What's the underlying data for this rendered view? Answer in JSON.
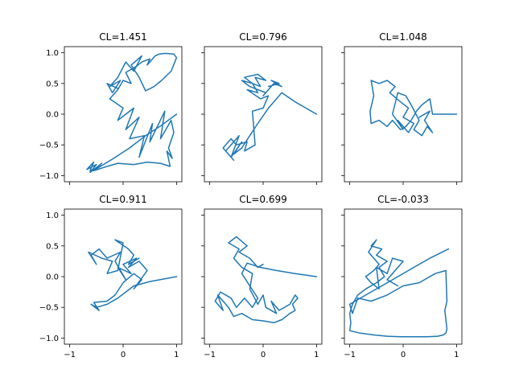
{
  "chart_data": {
    "type": "line",
    "shared_x": true,
    "shared_y": true,
    "xlim": [
      -1.1,
      1.1
    ],
    "ylim": [
      -1.1,
      1.1
    ],
    "xticks": [
      -1,
      0,
      1
    ],
    "yticks": [
      -1.0,
      -0.5,
      0.0,
      0.5,
      1.0
    ],
    "xtick_labels": [
      "−1",
      "0",
      "1"
    ],
    "ytick_labels": [
      "−1.0",
      "−0.5",
      "0.0",
      "0.5",
      "1.0"
    ],
    "color": "#1f77b4",
    "panels": [
      {
        "title": "CL=1.451",
        "x": [
          1.0,
          0.72,
          0.42,
          0.12,
          -0.18,
          -0.48,
          -0.62,
          -0.55,
          -0.68,
          -0.5,
          -0.62,
          -0.4,
          -0.55,
          -0.3,
          -0.1,
          0.2,
          0.45,
          0.7,
          0.88,
          0.82,
          0.92,
          0.85,
          0.95,
          0.9,
          0.7,
          0.78,
          0.5,
          0.55,
          0.3,
          0.4,
          0.12,
          0.3,
          0.05,
          0.2,
          -0.1,
          0.0,
          -0.25,
          -0.1,
          0.0,
          0.15,
          0.05,
          0.25,
          0.35,
          0.5,
          0.45,
          0.6,
          0.68,
          0.78,
          0.95,
          1.0,
          0.9,
          0.72,
          0.58,
          0.42,
          0.3,
          0.15,
          0.35,
          0.2,
          0.05,
          -0.1,
          -0.25,
          -0.05,
          -0.2,
          -0.3,
          -0.1
        ],
        "y": [
          0.0,
          -0.18,
          -0.35,
          -0.55,
          -0.72,
          -0.88,
          -0.92,
          -0.78,
          -0.9,
          -0.82,
          -0.95,
          -0.8,
          -0.92,
          -0.85,
          -0.8,
          -0.82,
          -0.78,
          -0.8,
          -0.85,
          -0.6,
          -0.72,
          -0.55,
          -0.3,
          -0.1,
          -0.4,
          0.05,
          -0.45,
          -0.15,
          -0.7,
          -0.35,
          -0.4,
          -0.05,
          -0.25,
          0.1,
          -0.1,
          0.1,
          0.25,
          0.4,
          0.55,
          0.5,
          0.68,
          0.78,
          0.85,
          0.9,
          0.8,
          0.95,
          0.98,
          0.99,
          0.98,
          0.92,
          0.7,
          0.55,
          0.45,
          0.38,
          0.6,
          0.8,
          0.95,
          0.7,
          0.85,
          0.6,
          0.45,
          0.55,
          0.35,
          0.5,
          0.42
        ]
      },
      {
        "title": "CL=0.796",
        "x": [
          1.0,
          0.6,
          0.35,
          0.1,
          -0.1,
          -0.25,
          -0.4,
          -0.55,
          -0.4,
          -0.6,
          -0.45,
          -0.7,
          -0.55,
          -0.75,
          -0.6,
          -0.5,
          -0.3,
          -0.35,
          -0.15,
          -0.2,
          0.0,
          0.1,
          -0.05,
          -0.3,
          -0.1,
          -0.2,
          -0.05,
          -0.15,
          0.05,
          -0.1,
          -0.35,
          -0.2,
          -0.4,
          -0.25,
          -0.1,
          0.05,
          0.0,
          0.2,
          0.35,
          0.15,
          0.3,
          0.1
        ],
        "y": [
          0.0,
          0.2,
          0.35,
          0.1,
          -0.15,
          -0.35,
          -0.55,
          -0.65,
          -0.45,
          -0.7,
          -0.35,
          -0.6,
          -0.75,
          -0.55,
          -0.4,
          -0.5,
          -0.45,
          -0.6,
          -0.5,
          0.05,
          0.1,
          0.3,
          0.25,
          0.4,
          0.35,
          0.5,
          0.45,
          0.6,
          0.55,
          0.65,
          0.6,
          0.5,
          0.55,
          0.45,
          0.4,
          0.35,
          0.3,
          0.5,
          0.45,
          0.55,
          0.5,
          0.45
        ]
      },
      {
        "title": "CL=1.048",
        "x": [
          1.0,
          0.55,
          0.5,
          0.35,
          0.25,
          0.15,
          0.05,
          -0.05,
          -0.2,
          -0.3,
          -0.45,
          -0.6,
          -0.62,
          -0.55,
          -0.6,
          -0.45,
          -0.3,
          -0.15,
          -0.25,
          -0.05,
          0.1,
          0.0,
          0.2,
          0.1,
          -0.1,
          0.0,
          -0.2,
          -0.1,
          0.05,
          0.15,
          0.3,
          0.2,
          0.35,
          0.45,
          0.55,
          0.4,
          0.5,
          0.3
        ],
        "y": [
          0.0,
          0.0,
          0.25,
          0.15,
          0.05,
          -0.1,
          -0.2,
          -0.25,
          -0.1,
          -0.2,
          -0.1,
          -0.15,
          0.05,
          0.3,
          0.55,
          0.5,
          0.55,
          0.45,
          0.35,
          0.2,
          0.1,
          -0.05,
          -0.15,
          -0.3,
          -0.1,
          -0.25,
          0.0,
          0.35,
          0.3,
          0.15,
          -0.1,
          -0.25,
          -0.35,
          -0.2,
          -0.3,
          -0.1,
          0.05,
          -0.05
        ]
      },
      {
        "title": "CL=0.911",
        "x": [
          1.0,
          0.5,
          0.2,
          0.05,
          -0.1,
          -0.3,
          -0.5,
          -0.6,
          -0.45,
          -0.55,
          -0.3,
          -0.15,
          0.0,
          0.2,
          0.35,
          0.2,
          0.45,
          0.3,
          0.1,
          0.25,
          0.0,
          0.15,
          -0.1,
          0.05,
          -0.15,
          -0.05,
          -0.3,
          -0.45,
          -0.6,
          -0.5,
          -0.65,
          -0.4,
          -0.2,
          -0.3,
          -0.1,
          0.0,
          -0.15,
          0.1,
          0.2,
          0.1,
          0.3
        ],
        "y": [
          0.0,
          -0.08,
          -0.15,
          -0.25,
          -0.35,
          -0.45,
          -0.5,
          -0.45,
          -0.55,
          -0.42,
          -0.4,
          -0.3,
          -0.1,
          0.05,
          -0.05,
          -0.2,
          0.1,
          0.25,
          0.15,
          0.3,
          0.2,
          0.05,
          0.15,
          -0.05,
          0.25,
          0.4,
          0.3,
          0.45,
          0.35,
          0.2,
          0.4,
          0.3,
          0.25,
          0.05,
          0.1,
          0.55,
          0.6,
          0.45,
          0.35,
          0.2,
          0.3
        ]
      },
      {
        "title": "CL=0.699",
        "x": [
          1.0,
          0.6,
          0.25,
          -0.05,
          -0.3,
          -0.4,
          -0.25,
          -0.1,
          -0.2,
          -0.35,
          -0.5,
          -0.6,
          -0.8,
          -0.9,
          -0.75,
          -0.85,
          -0.65,
          -0.55,
          -0.4,
          -0.2,
          0.0,
          0.2,
          0.35,
          0.5,
          0.6,
          0.55,
          0.65,
          0.6,
          0.5,
          0.3,
          0.15,
          0.25,
          0.05,
          0.0,
          -0.1,
          -0.25,
          -0.2,
          -0.4,
          -0.55,
          -0.45,
          -0.65,
          -0.5,
          -0.3,
          -0.45,
          -0.25,
          -0.1,
          0.0
        ],
        "y": [
          0.0,
          0.05,
          0.1,
          0.15,
          0.22,
          0.05,
          -0.15,
          -0.35,
          -0.5,
          -0.35,
          -0.5,
          -0.35,
          -0.25,
          -0.4,
          -0.55,
          -0.3,
          -0.5,
          -0.65,
          -0.6,
          -0.7,
          -0.72,
          -0.75,
          -0.7,
          -0.6,
          -0.55,
          -0.45,
          -0.35,
          -0.3,
          -0.45,
          -0.55,
          -0.4,
          -0.6,
          -0.5,
          -0.3,
          -0.45,
          -0.2,
          0.05,
          0.15,
          0.3,
          0.45,
          0.55,
          0.65,
          0.5,
          0.4,
          0.3,
          0.15,
          0.2
        ]
      },
      {
        "title": "CL=-0.033",
        "x": [
          0.85,
          0.5,
          0.2,
          -0.1,
          -0.4,
          -0.7,
          -1.0,
          -0.95,
          -0.85,
          -0.6,
          -0.3,
          0.0,
          0.3,
          0.6,
          0.8,
          0.82,
          0.78,
          0.8,
          0.82,
          0.8,
          0.75,
          0.65,
          0.45,
          0.2,
          -0.05,
          -0.3,
          -0.55,
          -0.8,
          -1.0,
          -0.98,
          -1.0,
          -0.95,
          -0.85,
          -0.7,
          -0.5,
          -0.35,
          -0.45,
          -0.3,
          -0.5,
          -0.4,
          -0.6,
          -0.5,
          -0.65,
          -0.45,
          -0.55,
          -0.7,
          -0.6,
          -0.45,
          -0.5,
          -0.3,
          -0.2,
          0.0,
          -0.1,
          -0.2,
          -0.3,
          -0.1
        ],
        "y": [
          0.45,
          0.3,
          0.15,
          0.0,
          -0.15,
          -0.3,
          -0.45,
          -0.6,
          -0.35,
          -0.4,
          -0.3,
          -0.15,
          -0.1,
          0.05,
          0.1,
          -0.4,
          -0.55,
          -0.7,
          -0.85,
          -0.92,
          -0.95,
          -0.97,
          -0.98,
          -0.98,
          -0.98,
          -0.97,
          -0.95,
          -0.92,
          -0.88,
          -0.75,
          -0.6,
          -0.45,
          -0.3,
          -0.2,
          -0.1,
          0.0,
          0.15,
          0.25,
          0.35,
          0.45,
          0.5,
          0.6,
          0.4,
          0.2,
          0.1,
          0.0,
          -0.1,
          -0.2,
          0.15,
          0.05,
          0.3,
          0.25,
          0.15,
          0.05,
          -0.05,
          -0.15
        ]
      }
    ]
  }
}
